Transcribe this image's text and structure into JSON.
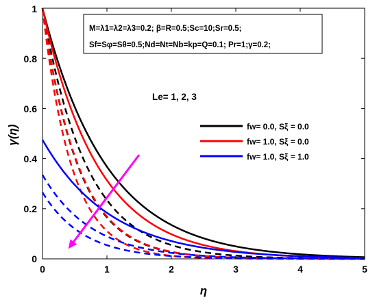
{
  "chart_data": {
    "type": "line",
    "xlabel": "η",
    "ylabel": "γ(η)",
    "xlim": [
      0,
      5
    ],
    "ylim": [
      0,
      1
    ],
    "xticks": [
      "0",
      "1",
      "2",
      "3",
      "4",
      "5"
    ],
    "yticks": [
      "0",
      "0.2",
      "0.4",
      "0.6",
      "0.8",
      "1"
    ],
    "grid": false,
    "legend_position": "right",
    "parameter_box": {
      "line1": "M=λ1=λ2=λ3=0.2; β=R=0.5;Sc=10;Sr=0.5;",
      "line2": "Sf=Sφ=Sθ=0.5;Nd=Nt=Nb=kp=Q=0.1; Pr=1;γ=0.2;"
    },
    "annotation": "Le= 1, 2, 3",
    "colors": {
      "black": "#000000",
      "red": "#ff0000",
      "blue": "#0000ff",
      "arrow": "#ff00ff"
    },
    "legend": [
      {
        "label": "fw= 0.0, Sξ = 0.0",
        "color": "#000000"
      },
      {
        "label": "fw= 1.0, Sξ = 0.0",
        "color": "#ff0000"
      },
      {
        "label": "fw= 1.0, Sξ = 1.0",
        "color": "#0000ff"
      }
    ],
    "series": [
      {
        "color": "#000000",
        "style": "solid",
        "y0": 1.0,
        "decay": 1.0
      },
      {
        "color": "#000000",
        "style": "dashed",
        "y0": 1.0,
        "decay": 1.45
      },
      {
        "color": "#000000",
        "style": "dashed",
        "y0": 1.0,
        "decay": 1.8
      },
      {
        "color": "#ff0000",
        "style": "solid",
        "y0": 1.0,
        "decay": 1.16
      },
      {
        "color": "#ff0000",
        "style": "dashed",
        "y0": 1.0,
        "decay": 1.78
      },
      {
        "color": "#ff0000",
        "style": "dashed",
        "y0": 1.0,
        "decay": 2.2
      },
      {
        "color": "#0000ff",
        "style": "solid",
        "y0": 0.475,
        "decay": 0.95
      },
      {
        "color": "#0000ff",
        "style": "dashed",
        "y0": 0.335,
        "decay": 1.32
      },
      {
        "color": "#0000ff",
        "style": "dashed",
        "y0": 0.265,
        "decay": 1.58
      }
    ],
    "arrow": {
      "from": [
        1.5,
        0.415
      ],
      "to": [
        0.4,
        0.04
      ]
    }
  }
}
